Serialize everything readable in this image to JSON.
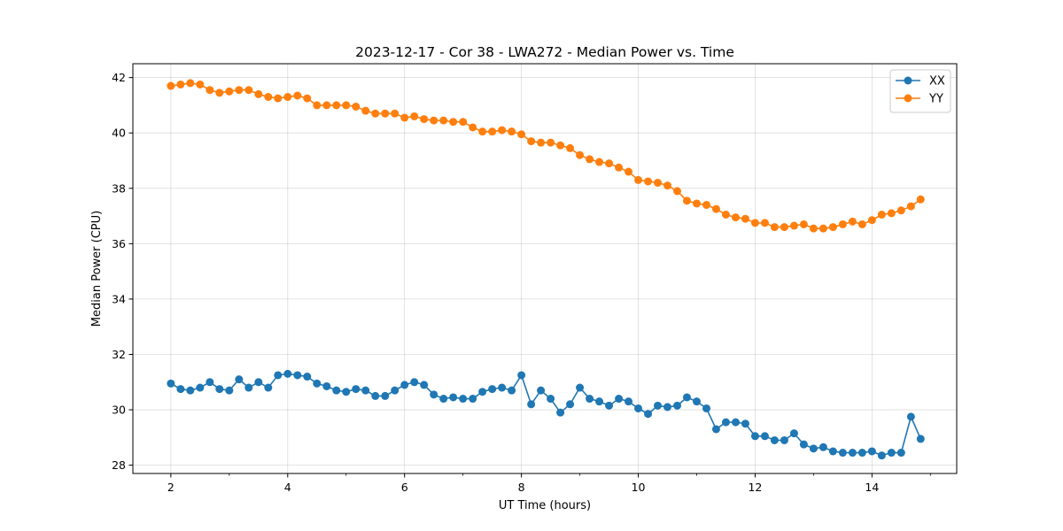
{
  "chart_data": {
    "type": "line",
    "title": "2023-12-17 - Cor 38 - LWA272 - Median Power vs. Time",
    "xlabel": "UT Time (hours)",
    "ylabel": "Median Power (CPU)",
    "xlim": [
      1.35,
      15.45
    ],
    "ylim": [
      27.7,
      42.5
    ],
    "x_ticks": [
      2,
      4,
      6,
      8,
      10,
      12,
      14
    ],
    "y_ticks": [
      28,
      30,
      32,
      34,
      36,
      38,
      40,
      42
    ],
    "grid": true,
    "legend_position": "top-right",
    "x": [
      2.0,
      2.167,
      2.333,
      2.5,
      2.667,
      2.833,
      3.0,
      3.167,
      3.333,
      3.5,
      3.667,
      3.833,
      4.0,
      4.167,
      4.333,
      4.5,
      4.667,
      4.833,
      5.0,
      5.167,
      5.333,
      5.5,
      5.667,
      5.833,
      6.0,
      6.167,
      6.333,
      6.5,
      6.667,
      6.833,
      7.0,
      7.167,
      7.333,
      7.5,
      7.667,
      7.833,
      8.0,
      8.167,
      8.333,
      8.5,
      8.667,
      8.833,
      9.0,
      9.167,
      9.333,
      9.5,
      9.667,
      9.833,
      10.0,
      10.167,
      10.333,
      10.5,
      10.667,
      10.833,
      11.0,
      11.167,
      11.333,
      11.5,
      11.667,
      11.833,
      12.0,
      12.167,
      12.333,
      12.5,
      12.667,
      12.833,
      13.0,
      13.167,
      13.333,
      13.5,
      13.667,
      13.833,
      14.0,
      14.167,
      14.333,
      14.5,
      14.667,
      14.833
    ],
    "series": [
      {
        "name": "XX",
        "color": "#1f77b4",
        "values": [
          30.95,
          30.75,
          30.7,
          30.8,
          31.0,
          30.75,
          30.7,
          31.1,
          30.8,
          31.0,
          30.8,
          31.25,
          31.3,
          31.25,
          31.2,
          30.95,
          30.85,
          30.7,
          30.65,
          30.75,
          30.7,
          30.5,
          30.5,
          30.7,
          30.9,
          31.0,
          30.9,
          30.55,
          30.4,
          30.45,
          30.4,
          30.4,
          30.65,
          30.75,
          30.8,
          30.7,
          31.25,
          30.2,
          30.7,
          30.4,
          29.9,
          30.2,
          30.8,
          30.4,
          30.3,
          30.15,
          30.4,
          30.3,
          30.05,
          29.85,
          30.15,
          30.1,
          30.15,
          30.45,
          30.3,
          30.05,
          29.3,
          29.55,
          29.55,
          29.5,
          29.05,
          29.05,
          28.9,
          28.9,
          29.15,
          28.75,
          28.6,
          28.65,
          28.5,
          28.45,
          28.45,
          28.45,
          28.5,
          28.35,
          28.45,
          28.45,
          29.75,
          28.95
        ]
      },
      {
        "name": "YY",
        "color": "#ff7f0e",
        "values": [
          41.7,
          41.75,
          41.8,
          41.75,
          41.55,
          41.45,
          41.5,
          41.55,
          41.55,
          41.4,
          41.3,
          41.25,
          41.3,
          41.35,
          41.25,
          41.0,
          41.0,
          41.0,
          41.0,
          40.95,
          40.8,
          40.7,
          40.7,
          40.7,
          40.55,
          40.6,
          40.5,
          40.45,
          40.45,
          40.4,
          40.4,
          40.2,
          40.05,
          40.05,
          40.1,
          40.05,
          39.95,
          39.7,
          39.65,
          39.65,
          39.55,
          39.45,
          39.2,
          39.05,
          38.95,
          38.9,
          38.75,
          38.6,
          38.3,
          38.25,
          38.2,
          38.1,
          37.9,
          37.55,
          37.45,
          37.4,
          37.25,
          37.05,
          36.95,
          36.9,
          36.75,
          36.75,
          36.6,
          36.6,
          36.65,
          36.7,
          36.55,
          36.55,
          36.6,
          36.7,
          36.8,
          36.7,
          36.85,
          37.05,
          37.1,
          37.2,
          37.35,
          37.6
        ]
      }
    ]
  }
}
